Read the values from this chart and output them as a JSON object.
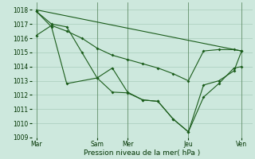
{
  "xlabel": "Pression niveau de la mer( hPa )",
  "background_color": "#cde8dd",
  "grid_color": "#a8ccbb",
  "line_color": "#1a5c1a",
  "vline_color": "#336633",
  "ylim": [
    1009,
    1018.5
  ],
  "yticks": [
    1009,
    1010,
    1011,
    1012,
    1013,
    1014,
    1015,
    1016,
    1017,
    1018
  ],
  "xlim": [
    0,
    14.5
  ],
  "day_labels": [
    "Mar",
    "Sam",
    "Mer",
    "Jeu",
    "Ven"
  ],
  "day_positions": [
    0.3,
    4.3,
    6.3,
    10.3,
    13.8
  ],
  "vline_positions": [
    0.3,
    4.3,
    6.3,
    10.3,
    13.8
  ],
  "series1_x": [
    0.3,
    1.3,
    2.3,
    4.3,
    5.3,
    6.3,
    7.3,
    8.3,
    9.3,
    10.3,
    11.3,
    12.3,
    13.3,
    13.8
  ],
  "series1_y": [
    1017.9,
    1016.8,
    1012.8,
    1013.2,
    1013.9,
    1012.2,
    1011.65,
    1011.55,
    1010.3,
    1009.4,
    1011.85,
    1012.8,
    1013.9,
    1014.0
  ],
  "series2_x": [
    0.3,
    1.3,
    2.3,
    3.3,
    4.3,
    5.3,
    6.3,
    7.3,
    8.3,
    9.3,
    10.3,
    11.3,
    12.3,
    13.3,
    13.8
  ],
  "series2_y": [
    1017.9,
    1017.0,
    1016.8,
    1015.0,
    1013.2,
    1012.2,
    1012.15,
    1011.65,
    1011.55,
    1010.3,
    1009.4,
    1012.7,
    1013.0,
    1013.7,
    1015.1
  ],
  "series3_x": [
    0.3,
    1.3,
    2.3,
    3.3,
    4.3,
    5.3,
    6.3,
    7.3,
    8.3,
    9.3,
    10.3,
    11.3,
    12.3,
    13.3,
    13.8
  ],
  "series3_y": [
    1016.2,
    1016.9,
    1016.5,
    1016.0,
    1015.3,
    1014.8,
    1014.5,
    1014.2,
    1013.9,
    1013.5,
    1013.0,
    1015.1,
    1015.2,
    1015.2,
    1015.1
  ],
  "series4_x": [
    0.3,
    13.8
  ],
  "series4_y": [
    1018.0,
    1015.1
  ]
}
